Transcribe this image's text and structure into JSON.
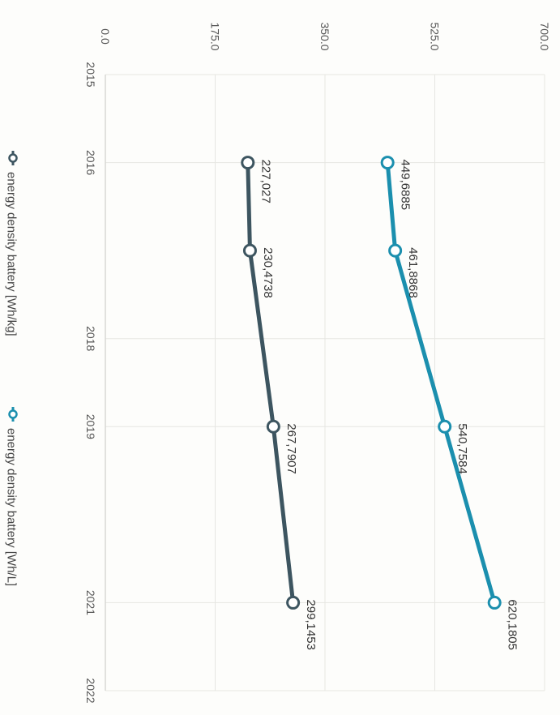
{
  "chart_data": {
    "type": "line",
    "x": [
      2016,
      2017,
      2019,
      2021
    ],
    "x_ticks": [
      "2015",
      "2016",
      "2018",
      "2019",
      "2021",
      "2022"
    ],
    "y_ticks": [
      "0.0",
      "175.0",
      "350.0",
      "525.0",
      "700.0"
    ],
    "ylim": [
      0,
      700
    ],
    "xlim": [
      2015,
      2022
    ],
    "grid": true,
    "legend_position": "bottom",
    "orientation": "rotated-90-clockwise",
    "series": [
      {
        "name": "energy density battery [Wh/kg]",
        "color": "#3d5560",
        "values": [
          227.027,
          230.4738,
          267.7907,
          299.1453
        ],
        "labels": [
          "227,027",
          "230,4738",
          "267,7907",
          "299,1453"
        ]
      },
      {
        "name": "energy density battery [Wh/L]",
        "color": "#1b8fae",
        "values": [
          449.6885,
          461.8868,
          540.7584,
          620.1805
        ],
        "labels": [
          "449,6885",
          "461,8868",
          "540,7584",
          "620,1805"
        ]
      }
    ]
  }
}
